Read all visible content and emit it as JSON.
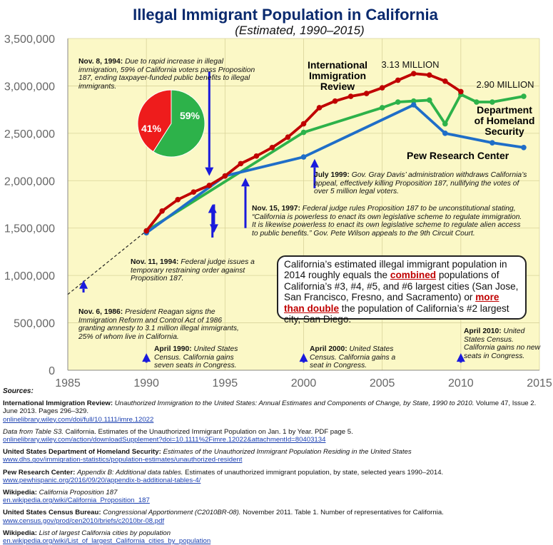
{
  "colors": {
    "plot_bg": "#fbf8c6",
    "title": "#0a2a6e",
    "international": "#c00000",
    "dhs": "#2db24a",
    "pew": "#1f6ec8",
    "arrow": "#1a1adc",
    "pie_red": "#ee1c1c",
    "pie_green": "#2db24a"
  },
  "chart_data": {
    "type": "line",
    "title": "Illegal Immigrant Population in California",
    "subtitle": "(Estimated, 1990–2015)",
    "xlim": [
      1985,
      2015
    ],
    "ylim": [
      0,
      3500000
    ],
    "xticks": [
      1985,
      1990,
      1995,
      2000,
      2005,
      2010,
      2015
    ],
    "yticks": [
      0,
      500000,
      1000000,
      1500000,
      2000000,
      2500000,
      3000000,
      3500000
    ],
    "ytick_labels": [
      "0",
      "500,000",
      "1,000,000",
      "1,500,000",
      "2,000,000",
      "2,500,000",
      "3,000,000",
      "3,500,000"
    ],
    "series": [
      {
        "name": "International Immigration Review",
        "label_lines": [
          "International",
          "Immigration",
          "Review"
        ],
        "color": "#c00000",
        "x": [
          1990,
          1991,
          1992,
          1993,
          1994,
          1995,
          1996,
          1997,
          1998,
          1999,
          2000,
          2001,
          2002,
          2003,
          2004,
          2005,
          2006,
          2007,
          2008,
          2009,
          2010
        ],
        "y": [
          1470000,
          1680000,
          1800000,
          1880000,
          1950000,
          2050000,
          2180000,
          2260000,
          2350000,
          2460000,
          2600000,
          2770000,
          2840000,
          2890000,
          2920000,
          2980000,
          3060000,
          3130000,
          3115000,
          3050000,
          2940000
        ]
      },
      {
        "name": "Department of Homeland Security",
        "label_lines": [
          "Department",
          "of Homeland",
          "Security"
        ],
        "color": "#2db24a",
        "x": [
          1990,
          2000,
          2005,
          2006,
          2007,
          2008,
          2009,
          2010,
          2011,
          2012,
          2014
        ],
        "y": [
          1470000,
          2510000,
          2770000,
          2830000,
          2840000,
          2850000,
          2600000,
          2910000,
          2830000,
          2830000,
          2890000
        ]
      },
      {
        "name": "Pew Research Center",
        "label_lines": [
          "Pew Research Center"
        ],
        "color": "#1f6ec8",
        "x": [
          1990,
          1995,
          2000,
          2007,
          2009,
          2012,
          2014
        ],
        "y": [
          1450000,
          2050000,
          2250000,
          2800000,
          2500000,
          2400000,
          2350000
        ]
      }
    ],
    "trend_line": {
      "style": "dashed",
      "x": [
        1985,
        1990
      ],
      "y": [
        800000,
        1470000
      ]
    },
    "peak_labels": [
      {
        "text": "3.13 MILLION",
        "x": 2007,
        "y": 3130000
      },
      {
        "text": "2.90 MILLION",
        "x": 2014,
        "y": 2890000
      }
    ],
    "pie": {
      "slices": [
        {
          "label": "59%",
          "value": 59,
          "color": "#2db24a"
        },
        {
          "label": "41%",
          "value": 41,
          "color": "#ee1c1c"
        }
      ]
    },
    "event_arrows": [
      {
        "x": 1994.0,
        "from_y": 3150000,
        "to_y": 2050000,
        "direction": "down"
      },
      {
        "x": 1994.3,
        "from_y": 1750000,
        "to_y": 1450000,
        "direction": "down"
      },
      {
        "x": 1986.0,
        "from_y": 820000,
        "to_y": 950000,
        "direction": "up"
      },
      {
        "x": 1990.0,
        "from_y": 80000,
        "to_y": 180000,
        "direction": "up"
      },
      {
        "x": 1994.2,
        "from_y": 1400000,
        "to_y": 1750000,
        "direction": "up"
      },
      {
        "x": 1996.3,
        "from_y": 1500000,
        "to_y": 2030000,
        "direction": "up"
      },
      {
        "x": 2000.7,
        "from_y": 1920000,
        "to_y": 2230000,
        "direction": "up"
      },
      {
        "x": 2000.0,
        "from_y": 80000,
        "to_y": 180000,
        "direction": "up"
      },
      {
        "x": 2010.0,
        "from_y": 80000,
        "to_y": 180000,
        "direction": "up"
      }
    ]
  },
  "annotations": [
    {
      "date": "Nov. 8, 1994:",
      "text": "Due to rapid increase in illegal immigration, 59% of California voters pass Proposition 187, ending taxpayer-funded public benefits to illegal immigrants."
    },
    {
      "date": "Nov. 11, 1994:",
      "text": "Federal judge issues a temporary restraining order against Proposition 187."
    },
    {
      "date": "Nov. 6, 1986:",
      "text": "President Reagan signs the Immigration Reform and Control Act of 1986 granting amnesty to 3.1 million illegal immigrants, 25% of whom live in California."
    },
    {
      "date": "Nov. 15, 1997:",
      "text": "Federal judge rules Proposition 187 to be unconstitutional stating, “California is powerless to enact its own legislative scheme to regulate immigration. It is likewise powerless to enact its own legislative scheme to regulate alien access to public benefits.” Gov. Pete Wilson appeals to the 9th Circuit Court."
    },
    {
      "date": "July 1999:",
      "text": "Gov. Gray Davis’ administration withdraws California’s appeal, effectively killing Proposition 187, nullifying the votes of over 5 million legal voters."
    },
    {
      "date": "April 1990:",
      "text": "United States Census. California gains seven seats in Congress."
    },
    {
      "date": "April 2000:",
      "text": "United States Census. California gains a seat in Congress."
    },
    {
      "date": "April 2010:",
      "text": "United States Census. California gains no new seats in Congress."
    }
  ],
  "callout": {
    "part1": "California’s estimated illegal immigrant population in 2014 roughly equals the ",
    "highlight1": "combined",
    "part2": " populations of California’s #3, #4, #5, and #6 largest cities (San Jose, San Francisco, Fresno, and Sacramento) or ",
    "highlight2": "more than double",
    "part3": " the population of California’s #2 largest city, San Diego."
  },
  "sources": {
    "heading": "Sources:",
    "items": [
      {
        "bold": "International Immigration Review:",
        "italic": "Unauthorized Immigration to the United States: Annual Estimates and Components of Change, by State, 1990 to 2010.",
        "plain": "Volume 47, Issue 2. June 2013. Pages 296–329.",
        "url": "onlinelibrary.wiley.com/doi/full/10.1111/imre.12022"
      },
      {
        "bold": "",
        "italic": "Data from Table S3.",
        "plain": "California. Estimates of the Unauthorized Immigrant Population on Jan. 1 by Year. PDF page 5.",
        "url": "onlinelibrary.wiley.com/action/downloadSupplement?doi=10.1111%2Fimre.12022&attachmentId=80403134"
      },
      {
        "bold": "United States Department of Homeland Security:",
        "italic": "Estimates of the Unauthorized Immigrant Population Residing in the United States",
        "plain": "",
        "url": "www.dhs.gov/immigration-statistics/population-estimates/unauthorized-resident"
      },
      {
        "bold": "Pew Research Center:",
        "italic": "Appendix B: Additional data tables.",
        "plain": "Estimates of unauthorized immigrant population, by state, selected years 1990–2014.",
        "url": "www.pewhispanic.org/2016/09/20/appendix-b-additional-tables-4/"
      },
      {
        "bold": "Wikipedia:",
        "italic": "California Proposition 187",
        "plain": "",
        "url": "en.wikipedia.org/wiki/California_Proposition_187"
      },
      {
        "bold": "United States Census Bureau:",
        "italic": "Congressional Apportionment (C2010BR-08).",
        "plain": "November 2011. Table 1. Number of representatives for California.",
        "url": "www.census.gov/prod/cen2010/briefs/c2010br-08.pdf"
      },
      {
        "bold": "Wikipedia:",
        "italic": "List of largest California cities by population",
        "plain": "",
        "url": "en.wikipedia.org/wiki/List_of_largest_California_cities_by_population"
      }
    ]
  }
}
